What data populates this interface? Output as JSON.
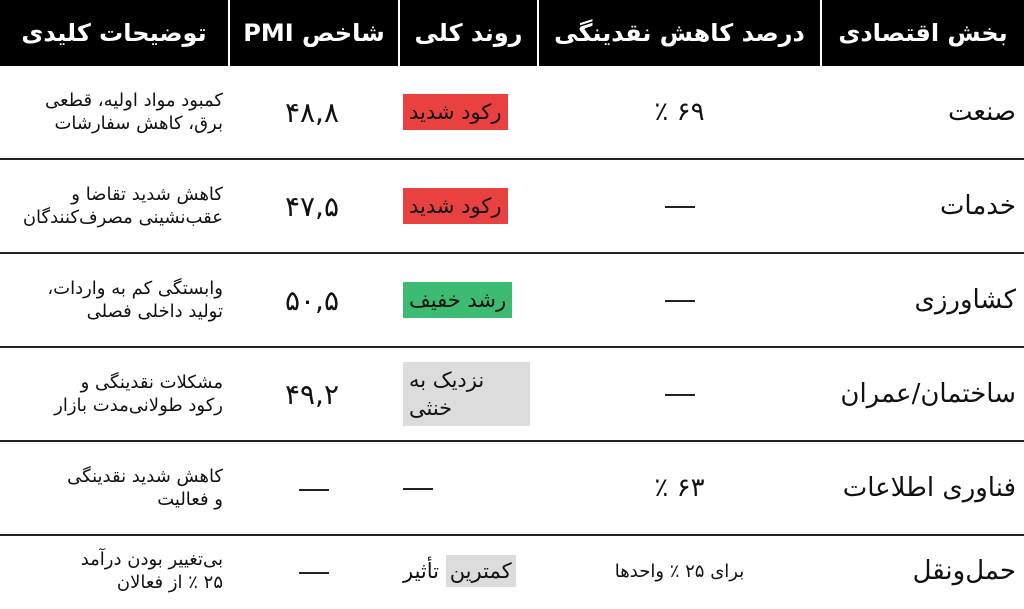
{
  "headers": {
    "sector": "بخش اقتصادی",
    "liquidity_drop": "درصد کاهش نقدینگی",
    "trend": "روند کلی",
    "pmi": "شاخص PMI",
    "notes": "توضیحات کلیدی"
  },
  "colors": {
    "recession": "#e8413f",
    "growth": "#3cbb72",
    "neutral": "#dcdcdc",
    "header_bg": "#000000"
  },
  "rows": [
    {
      "sector": "صنعت",
      "liquidity_drop": "۶۹ ٪",
      "trend": "رکود شدید",
      "trend_style": "recession",
      "pmi": "۴۸,۸",
      "notes_line1": "کمبود مواد اولیه، قطعی",
      "notes_line2": "برق، کاهش سفارشات"
    },
    {
      "sector": "خدمات",
      "liquidity_drop": "—",
      "trend": "رکود شدید",
      "trend_style": "recession",
      "pmi": "۴۷,۵",
      "notes_line1": "کاهش شدید تقاضا و",
      "notes_line2": "عقب‌نشینی مصرف‌کنندگان"
    },
    {
      "sector": "کشاورزی",
      "liquidity_drop": "—",
      "trend": "رشد خفیف",
      "trend_style": "growth",
      "pmi": "۵۰,۵",
      "notes_line1": "وابستگی کم به واردات،",
      "notes_line2": "تولید داخلی فصلی"
    },
    {
      "sector": "ساختمان/عمران",
      "liquidity_drop": "—",
      "trend": "نزدیک به خنثی",
      "trend_style": "neutral",
      "pmi": "۴۹,۲",
      "notes_line1": "مشکلات نقدینگی و",
      "notes_line2": "رکود طولانی‌مدت بازار"
    },
    {
      "sector": "فناوری اطلاعات",
      "liquidity_drop": "۶۳ ٪",
      "trend": "—",
      "trend_style": "none",
      "pmi": "—",
      "notes_line1": "کاهش شدید نقدینگی",
      "notes_line2": "و فعالیت"
    },
    {
      "sector": "حمل‌ونقل",
      "liquidity_drop": "برای ۲۵ ٪ واحدها",
      "trend": "کمترین تأثیر",
      "trend_style": "neutral-partial",
      "trend_highlight": "کمترین",
      "trend_rest": " تأثیر",
      "pmi": "—",
      "notes_line1": "بی‌تغییر بودن درآمد",
      "notes_line2": "۲۵ ٪ از فعالان"
    }
  ]
}
